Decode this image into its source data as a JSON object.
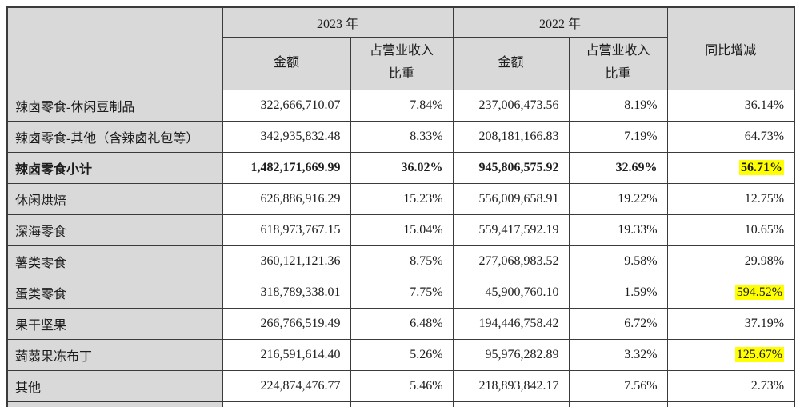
{
  "table": {
    "header": {
      "corner": "",
      "year_2023": "2023 年",
      "year_2022": "2022 年",
      "amount": "金额",
      "revenue_share_line1": "占营业收入",
      "revenue_share_line2": "比重",
      "yoy": "同比增减"
    },
    "rows": [
      {
        "label": "辣卤零食-休闲豆制品",
        "amount_2023": "322,666,710.07",
        "share_2023": "7.84%",
        "amount_2022": "237,006,473.56",
        "share_2022": "8.19%",
        "yoy": "36.14%",
        "bold": false,
        "yoy_highlight": false
      },
      {
        "label": "辣卤零食-其他（含辣卤礼包等）",
        "amount_2023": "342,935,832.48",
        "share_2023": "8.33%",
        "amount_2022": "208,181,166.83",
        "share_2022": "7.19%",
        "yoy": "64.73%",
        "bold": false,
        "yoy_highlight": false
      },
      {
        "label": "辣卤零食小计",
        "amount_2023": "1,482,171,669.99",
        "share_2023": "36.02%",
        "amount_2022": "945,806,575.92",
        "share_2022": "32.69%",
        "yoy": "56.71%",
        "bold": true,
        "yoy_highlight": true
      },
      {
        "label": "休闲烘焙",
        "amount_2023": "626,886,916.29",
        "share_2023": "15.23%",
        "amount_2022": "556,009,658.91",
        "share_2022": "19.22%",
        "yoy": "12.75%",
        "bold": false,
        "yoy_highlight": false
      },
      {
        "label": "深海零食",
        "amount_2023": "618,973,767.15",
        "share_2023": "15.04%",
        "amount_2022": "559,417,592.19",
        "share_2022": "19.33%",
        "yoy": "10.65%",
        "bold": false,
        "yoy_highlight": false
      },
      {
        "label": "薯类零食",
        "amount_2023": "360,121,121.36",
        "share_2023": "8.75%",
        "amount_2022": "277,068,983.52",
        "share_2022": "9.58%",
        "yoy": "29.98%",
        "bold": false,
        "yoy_highlight": false
      },
      {
        "label": "蛋类零食",
        "amount_2023": "318,789,338.01",
        "share_2023": "7.75%",
        "amount_2022": "45,900,760.10",
        "share_2022": "1.59%",
        "yoy": "594.52%",
        "bold": false,
        "yoy_highlight": true
      },
      {
        "label": "果干坚果",
        "amount_2023": "266,766,519.49",
        "share_2023": "6.48%",
        "amount_2022": "194,446,758.42",
        "share_2022": "6.72%",
        "yoy": "37.19%",
        "bold": false,
        "yoy_highlight": false
      },
      {
        "label": "蒟蒻果冻布丁",
        "amount_2023": "216,591,614.40",
        "share_2023": "5.26%",
        "amount_2022": "95,976,282.89",
        "share_2022": "3.32%",
        "yoy": "125.67%",
        "bold": false,
        "yoy_highlight": true
      },
      {
        "label": "其他",
        "amount_2023": "224,874,476.77",
        "share_2023": "5.46%",
        "amount_2022": "218,893,842.17",
        "share_2022": "7.56%",
        "yoy": "2.73%",
        "bold": false,
        "yoy_highlight": false
      }
    ],
    "colors": {
      "header_bg": "#d9d9d9",
      "label_bg": "#d9d9d9",
      "highlight": "#ffff00",
      "border": "#3b3b3b"
    }
  }
}
